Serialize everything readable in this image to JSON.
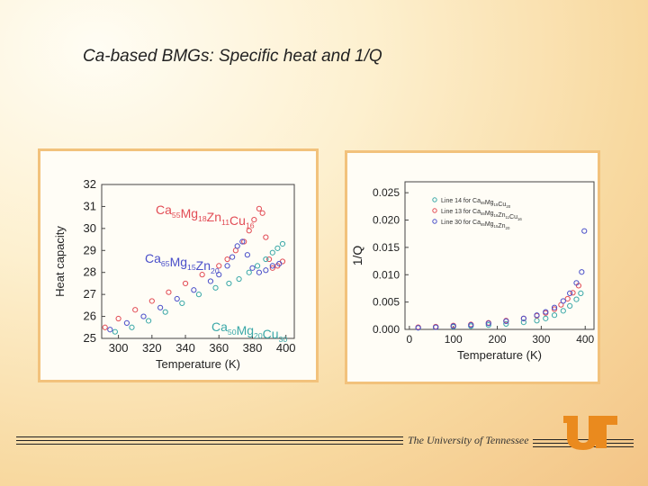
{
  "slide": {
    "title": "Ca-based BMGs: Specific heat and 1/Q"
  },
  "footer": {
    "university": "The University of Tennessee"
  },
  "colors": {
    "panel_border": "#f2c27c",
    "red": "#e24c55",
    "blue": "#4a4fc9",
    "teal": "#3aa8a8"
  },
  "chart_data": [
    {
      "type": "scatter",
      "xlabel": "Temperature (K)",
      "ylabel": "Heat capacity",
      "xlim": [
        290,
        405
      ],
      "ylim": [
        25,
        32
      ],
      "x_ticks": [
        "300",
        "320",
        "340",
        "360",
        "380",
        "400"
      ],
      "y_ticks": [
        "25",
        "26",
        "27",
        "28",
        "29",
        "30",
        "31",
        "32"
      ],
      "annotations": [
        {
          "base": "Ca",
          "parts": [
            [
              "Ca",
              "55"
            ],
            [
              "Mg",
              "18"
            ],
            [
              "Zn",
              "11"
            ],
            [
              "Cu",
              "16"
            ]
          ],
          "color": "#e24c55"
        },
        {
          "parts": [
            [
              "Ca",
              "65"
            ],
            [
              "Mg",
              "15"
            ],
            [
              "Zn",
              "20"
            ]
          ],
          "color": "#4a4fc9"
        },
        {
          "parts": [
            [
              "Ca",
              "50"
            ],
            [
              "Mg",
              "20"
            ],
            [
              "Cu",
              "30"
            ]
          ],
          "color": "#3aa8a8"
        }
      ],
      "series": [
        {
          "name": "Ca55Mg18Zn11Cu16",
          "color": "#e24c55",
          "x": [
            292,
            300,
            310,
            320,
            330,
            340,
            350,
            360,
            365,
            370,
            375,
            378,
            381,
            384,
            386,
            388,
            390,
            392,
            395,
            398
          ],
          "y": [
            25.5,
            25.9,
            26.3,
            26.7,
            27.1,
            27.5,
            27.9,
            28.3,
            28.6,
            29.0,
            29.4,
            29.9,
            30.4,
            30.9,
            30.7,
            29.6,
            28.6,
            28.2,
            28.3,
            28.5
          ]
        },
        {
          "name": "Ca65Mg15Zn20",
          "color": "#4a4fc9",
          "x": [
            295,
            305,
            315,
            325,
            335,
            345,
            355,
            360,
            365,
            368,
            371,
            374,
            377,
            380,
            384,
            388,
            392,
            396
          ],
          "y": [
            25.4,
            25.7,
            26.0,
            26.4,
            26.8,
            27.2,
            27.6,
            27.9,
            28.3,
            28.7,
            29.2,
            29.4,
            28.8,
            28.2,
            28.0,
            28.1,
            28.3,
            28.4
          ]
        },
        {
          "name": "Ca50Mg20Cu30",
          "color": "#3aa8a8",
          "x": [
            298,
            308,
            318,
            328,
            338,
            348,
            358,
            366,
            372,
            378,
            383,
            388,
            392,
            395,
            398
          ],
          "y": [
            25.3,
            25.5,
            25.8,
            26.2,
            26.6,
            27.0,
            27.3,
            27.5,
            27.7,
            28.0,
            28.3,
            28.6,
            28.9,
            29.1,
            29.3
          ]
        }
      ]
    },
    {
      "type": "scatter",
      "xlabel": "Temperature (K)",
      "ylabel": "1/Q",
      "xlim": [
        -10,
        420
      ],
      "ylim": [
        0,
        0.027
      ],
      "x_ticks": [
        "0",
        "100",
        "200",
        "300",
        "400"
      ],
      "y_ticks": [
        "0.000",
        "0.005",
        "0.010",
        "0.015",
        "0.020",
        "0.025"
      ],
      "legend": [
        {
          "label": "Line 14 for ",
          "parts": [
            [
              "Ca",
              "65"
            ],
            [
              "Mg",
              "15"
            ],
            [
              "Cu",
              "20"
            ]
          ],
          "color": "#3aa8a8"
        },
        {
          "label": "Line 13 for ",
          "parts": [
            [
              "Ca",
              "55"
            ],
            [
              "Mg",
              "18"
            ],
            [
              "Zn",
              "11"
            ],
            [
              "Cu",
              "16"
            ]
          ],
          "color": "#e24c55"
        },
        {
          "label": "Line 30 for ",
          "parts": [
            [
              "Ca",
              "65"
            ],
            [
              "Mg",
              "15"
            ],
            [
              "Zn",
              "20"
            ]
          ],
          "color": "#4a4fc9"
        }
      ],
      "legend_position": "top-right",
      "series": [
        {
          "name": "Ca65Mg15Cu20",
          "color": "#3aa8a8",
          "x": [
            20,
            60,
            100,
            140,
            180,
            220,
            260,
            290,
            310,
            330,
            350,
            365,
            380,
            390
          ],
          "y": [
            0.0003,
            0.0004,
            0.0005,
            0.0006,
            0.0008,
            0.001,
            0.0013,
            0.0016,
            0.002,
            0.0026,
            0.0034,
            0.0043,
            0.0055,
            0.0066
          ]
        },
        {
          "name": "Ca55Mg18Zn11Cu16",
          "color": "#e24c55",
          "x": [
            20,
            60,
            100,
            140,
            180,
            220,
            260,
            290,
            310,
            330,
            345,
            360,
            372,
            385
          ],
          "y": [
            0.0004,
            0.0005,
            0.0007,
            0.0009,
            0.0012,
            0.0016,
            0.002,
            0.0025,
            0.003,
            0.0037,
            0.0045,
            0.0056,
            0.0067,
            0.008
          ]
        },
        {
          "name": "Ca65Mg15Zn20",
          "color": "#4a4fc9",
          "x": [
            20,
            60,
            100,
            140,
            180,
            220,
            260,
            290,
            310,
            330,
            350,
            365,
            380,
            392,
            398
          ],
          "y": [
            0.0003,
            0.0004,
            0.0006,
            0.0008,
            0.0011,
            0.0015,
            0.002,
            0.0026,
            0.0032,
            0.004,
            0.0052,
            0.0066,
            0.0085,
            0.0105,
            0.018
          ]
        }
      ]
    }
  ]
}
